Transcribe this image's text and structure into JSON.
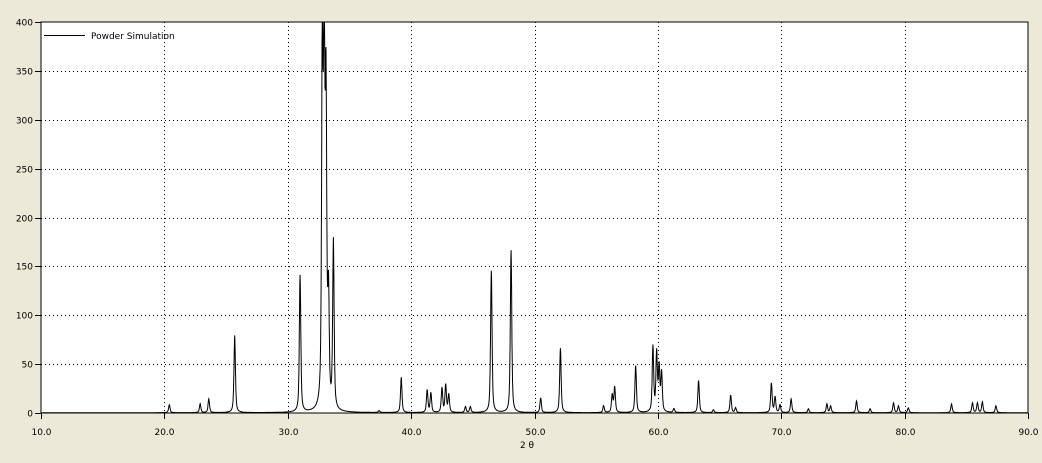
{
  "chart_data": {
    "type": "line",
    "title": "",
    "xlabel": "2 θ",
    "ylabel": "",
    "xlim": [
      10.0,
      90.0
    ],
    "ylim": [
      0,
      400
    ],
    "x_ticks": [
      "10.0",
      "20.0",
      "30.0",
      "40.0",
      "50.0",
      "60.0",
      "70.0",
      "80.0",
      "90.0"
    ],
    "y_ticks": [
      "0",
      "50",
      "100",
      "150",
      "200",
      "250",
      "300",
      "350",
      "400"
    ],
    "grid": true,
    "grid_style": "dotted",
    "legend_position": "top-left",
    "background_color": "#ece9d8",
    "plot_background": "#ffffff",
    "line_color": "#000000",
    "series": [
      {
        "name": "Powder Simulation",
        "peaks_2theta": [
          20.4,
          22.9,
          23.6,
          25.7,
          31.0,
          32.8,
          32.95,
          33.1,
          33.3,
          33.7,
          37.4,
          39.2,
          41.3,
          41.6,
          42.5,
          42.8,
          43.05,
          44.4,
          44.8,
          46.5,
          48.1,
          50.5,
          52.1,
          55.6,
          56.3,
          56.5,
          58.2,
          59.6,
          59.9,
          60.1,
          60.3,
          61.3,
          63.3,
          64.5,
          65.9,
          66.3,
          69.2,
          69.5,
          69.9,
          70.8,
          72.2,
          73.7,
          74.0,
          76.1,
          77.2,
          79.1,
          79.5,
          80.3,
          83.8,
          85.5,
          85.9,
          86.3,
          87.4
        ],
        "peaks_intensity": [
          8,
          9,
          14,
          79,
          140,
          358,
          357,
          310,
          110,
          172,
          2,
          36,
          23,
          20,
          25,
          28,
          18,
          6,
          6,
          145,
          166,
          15,
          66,
          7,
          18,
          26,
          48,
          67,
          60,
          45,
          40,
          4,
          33,
          3,
          18,
          5,
          30,
          16,
          8,
          14,
          4,
          9,
          7,
          12,
          4,
          10,
          7,
          5,
          9,
          10,
          10,
          11,
          7
        ]
      }
    ]
  }
}
